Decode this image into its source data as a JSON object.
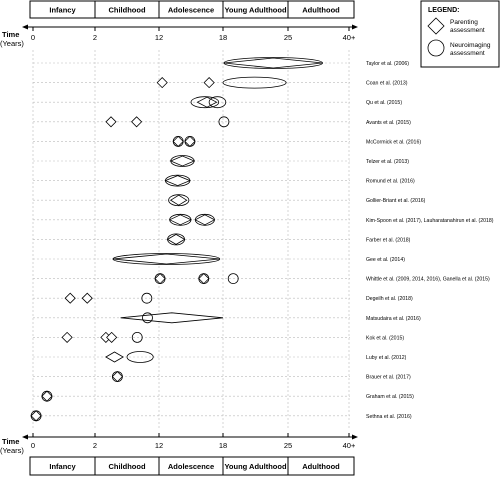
{
  "axis": {
    "time_label": "Time",
    "units_label": "(Years)",
    "ticks": [
      {
        "label": "0",
        "value": 0
      },
      {
        "label": "2",
        "value": 2
      },
      {
        "label": "12",
        "value": 12
      },
      {
        "label": "18",
        "value": 18
      },
      {
        "label": "25",
        "value": 25
      },
      {
        "label": "40+",
        "value": 40
      }
    ]
  },
  "stages": [
    {
      "label": "Infancy",
      "from": 0,
      "to": 2
    },
    {
      "label": "Childhood",
      "from": 2,
      "to": 12
    },
    {
      "label": "Adolescence",
      "from": 12,
      "to": 18
    },
    {
      "label": "Young Adulthood",
      "from": 18,
      "to": 25
    },
    {
      "label": "Adulthood",
      "from": 25,
      "to": 40
    }
  ],
  "legend": {
    "title": "LEGEND:",
    "items": [
      {
        "shape": "diamond",
        "label_lines": [
          "Parenting",
          "assessment"
        ]
      },
      {
        "shape": "circle",
        "label_lines": [
          "Neuroimaging",
          "assessment"
        ]
      }
    ]
  },
  "studies": [
    {
      "label": "Taylor et al. (2006)",
      "marks": [
        {
          "type": "diamond",
          "from": 18.1,
          "to": 33.5
        },
        {
          "type": "circle",
          "from": 18.1,
          "to": 33.5
        }
      ]
    },
    {
      "label": "Coan et al. (2013)",
      "marks": [
        {
          "type": "diamond",
          "at": 12.3
        },
        {
          "type": "diamond",
          "at": 16.7
        },
        {
          "type": "circle",
          "from": 18,
          "to": 24.8
        }
      ]
    },
    {
      "label": "Qu et al. (2015)",
      "marks": [
        {
          "type": "circle",
          "from": 15,
          "to": 17.6
        },
        {
          "type": "diamond",
          "from": 15.6,
          "to": 17.4
        },
        {
          "type": "circle",
          "from": 16.7,
          "to": 18.3
        }
      ]
    },
    {
      "label": "Avants et al. (2015)",
      "marks": [
        {
          "type": "diamond",
          "at": 4.5
        },
        {
          "type": "diamond",
          "at": 8.5
        },
        {
          "type": "circle",
          "at": 18.1
        }
      ]
    },
    {
      "label": "McCormick et al. (2016)",
      "marks": [
        {
          "type": "diamond",
          "at": 13.8
        },
        {
          "type": "circle",
          "at": 13.8
        },
        {
          "type": "diamond",
          "at": 14.9
        },
        {
          "type": "circle",
          "at": 14.9
        }
      ]
    },
    {
      "label": "Telzer et al. (2013)",
      "marks": [
        {
          "type": "diamond",
          "from": 13.1,
          "to": 15.3
        },
        {
          "type": "circle",
          "from": 13.1,
          "to": 15.3
        }
      ]
    },
    {
      "label": "Romund et al. (2016)",
      "marks": [
        {
          "type": "diamond",
          "from": 12.6,
          "to": 14.9
        },
        {
          "type": "circle",
          "from": 12.6,
          "to": 14.9
        }
      ]
    },
    {
      "label": "Gollier-Briant et al. (2016)",
      "marks": [
        {
          "type": "diamond",
          "from": 13.1,
          "to": 14.6
        },
        {
          "type": "circle",
          "from": 12.9,
          "to": 14.8
        }
      ]
    },
    {
      "label": "Kim-Spoon et al. (2017), Lauharatanahirun et al. (2018)",
      "marks": [
        {
          "type": "diamond",
          "from": 13.0,
          "to": 15.0
        },
        {
          "type": "circle",
          "from": 13.0,
          "to": 15.0
        },
        {
          "type": "diamond",
          "from": 15.4,
          "to": 17.2
        },
        {
          "type": "circle",
          "from": 15.4,
          "to": 17.2
        }
      ]
    },
    {
      "label": "Farber et al. (2018)",
      "marks": [
        {
          "type": "diamond",
          "from": 12.8,
          "to": 14.4
        },
        {
          "type": "circle",
          "from": 12.8,
          "to": 14.4
        }
      ]
    },
    {
      "label": "Gee et al. (2014)",
      "marks": [
        {
          "type": "diamond",
          "from": 4.8,
          "to": 17.7
        },
        {
          "type": "circle",
          "from": 4.8,
          "to": 17.7
        }
      ]
    },
    {
      "label": "Whittle et al. (2009, 2014, 2016), Ganella et al. (2015)",
      "marks": [
        {
          "type": "diamond",
          "at": 12.1
        },
        {
          "type": "circle",
          "at": 12.1
        },
        {
          "type": "diamond",
          "at": 16.2
        },
        {
          "type": "circle",
          "at": 16.2
        },
        {
          "type": "circle",
          "at": 19.1
        }
      ]
    },
    {
      "label": "Degeilh et al. (2018)",
      "marks": [
        {
          "type": "diamond",
          "at": 1.2
        },
        {
          "type": "diamond",
          "at": 1.75
        },
        {
          "type": "circle",
          "at": 10.1
        }
      ]
    },
    {
      "label": "Matsudaira et al. (2016)",
      "marks": [
        {
          "type": "diamond",
          "from": 6.0,
          "to": 18.0
        },
        {
          "type": "circle",
          "at": 10.2
        }
      ]
    },
    {
      "label": "Kok et al. (2015)",
      "marks": [
        {
          "type": "diamond",
          "at": 1.1
        },
        {
          "type": "diamond",
          "at": 3.7
        },
        {
          "type": "diamond",
          "at": 4.6
        },
        {
          "type": "circle",
          "at": 8.6
        }
      ]
    },
    {
      "label": "Luby et al. (2012)",
      "marks": [
        {
          "type": "diamond",
          "from": 3.7,
          "to": 6.4
        },
        {
          "type": "circle",
          "from": 7.0,
          "to": 11.1
        }
      ]
    },
    {
      "label": "Brauer et al. (2017)",
      "marks": [
        {
          "type": "diamond",
          "at": 5.5
        },
        {
          "type": "circle",
          "at": 5.5
        }
      ]
    },
    {
      "label": "Graham et al. (2015)",
      "marks": [
        {
          "type": "diamond",
          "at": 0.45
        },
        {
          "type": "circle",
          "at": 0.45
        }
      ]
    },
    {
      "label": "Sethna et al. (2016)",
      "marks": [
        {
          "type": "diamond",
          "at": 0.1
        },
        {
          "type": "circle",
          "at": 0.1
        }
      ]
    }
  ]
}
